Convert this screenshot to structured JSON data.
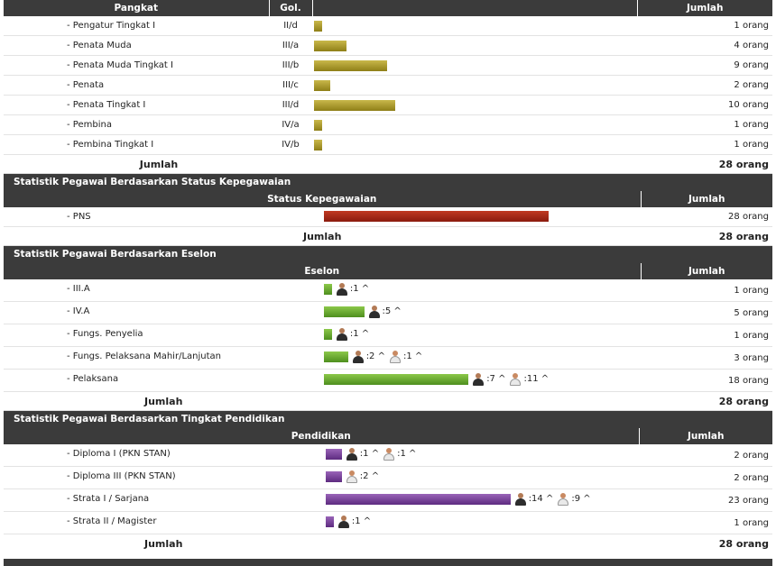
{
  "pangkat": {
    "headers": [
      "Pangkat",
      "Gol.",
      "",
      "Jumlah"
    ],
    "rows": [
      {
        "name": "- Pengatur Tingkat I",
        "gol": "II/d",
        "count": "1 orang",
        "value": 1
      },
      {
        "name": "- Penata Muda",
        "gol": "III/a",
        "count": "4 orang",
        "value": 4
      },
      {
        "name": "- Penata Muda Tingkat I",
        "gol": "III/b",
        "count": "9 orang",
        "value": 9
      },
      {
        "name": "- Penata",
        "gol": "III/c",
        "count": "2 orang",
        "value": 2
      },
      {
        "name": "- Penata Tingkat I",
        "gol": "III/d",
        "count": "10 orang",
        "value": 10
      },
      {
        "name": "- Pembina",
        "gol": "IV/a",
        "count": "1 orang",
        "value": 1
      },
      {
        "name": "- Pembina Tingkat I",
        "gol": "IV/b",
        "count": "1 orang",
        "value": 1
      }
    ],
    "total_label": "Jumlah",
    "total": "28 orang",
    "bar_color": "#b5a432"
  },
  "status": {
    "section_title": "Statistik Pegawai Berdasarkan Status Kepegawaian",
    "headers": [
      "Status Kepegawaian",
      "Jumlah"
    ],
    "rows": [
      {
        "name": "- PNS",
        "count": "28 orang",
        "value": 28
      }
    ],
    "total_label": "Jumlah",
    "total": "28 orang",
    "bar_color": "#a92c18"
  },
  "eselon": {
    "section_title": "Statistik Pegawai Berdasarkan Eselon",
    "headers": [
      "Eselon",
      "Jumlah"
    ],
    "rows": [
      {
        "name": "- III.A",
        "count": "1 orang",
        "value": 1,
        "male": ":1 ^",
        "female": null
      },
      {
        "name": "- IV.A",
        "count": "5 orang",
        "value": 5,
        "male": ":5 ^",
        "female": null
      },
      {
        "name": "- Fungs. Penyelia",
        "count": "1 orang",
        "value": 1,
        "male": ":1 ^",
        "female": null
      },
      {
        "name": "- Fungs. Pelaksana Mahir/Lanjutan",
        "count": "3 orang",
        "value": 3,
        "male": ":2 ^",
        "female": ":1 ^"
      },
      {
        "name": "- Pelaksana",
        "count": "18 orang",
        "value": 18,
        "male": ":7 ^",
        "female": ":11 ^"
      }
    ],
    "total_label": "Jumlah",
    "total": "28 orang",
    "bar_color": "#6fae36"
  },
  "pendidikan": {
    "section_title": "Statistik Pegawai Berdasarkan Tingkat Pendidikan",
    "headers": [
      "Pendidikan",
      "Jumlah"
    ],
    "rows": [
      {
        "name": "- Diploma I (PKN STAN)",
        "count": "2 orang",
        "value": 2,
        "male": ":1 ^",
        "female": ":1 ^"
      },
      {
        "name": "- Diploma III (PKN STAN)",
        "count": "2 orang",
        "value": 2,
        "male": null,
        "female": ":2 ^"
      },
      {
        "name": "- Strata I / Sarjana",
        "count": "23 orang",
        "value": 23,
        "male": ":14 ^",
        "female": ":9 ^"
      },
      {
        "name": "- Strata II / Magister",
        "count": "1 orang",
        "value": 1,
        "male": ":1 ^",
        "female": null
      }
    ],
    "total_label": "Jumlah",
    "total": "28 orang",
    "bar_color": "#7a449c"
  },
  "icons": {
    "male": "male-person-icon",
    "female": "female-person-icon"
  }
}
